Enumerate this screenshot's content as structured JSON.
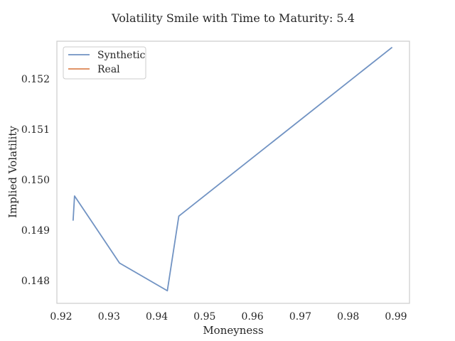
{
  "chart_data": {
    "type": "line",
    "title": "Volatility Smile with Time to Maturity: 5.4",
    "xlabel": "Moneyness",
    "ylabel": "Implied Volatility",
    "xlim": [
      0.92,
      0.99
    ],
    "ylim": [
      0.14755,
      0.15275
    ],
    "x_ticks": [
      0.92,
      0.93,
      0.94,
      0.95,
      0.96,
      0.97,
      0.98,
      0.99
    ],
    "x_tick_labels": [
      "0.92",
      "0.93",
      "0.94",
      "0.95",
      "0.96",
      "0.97",
      "0.98",
      "0.99"
    ],
    "y_ticks": [
      0.148,
      0.149,
      0.15,
      0.151,
      0.152
    ],
    "y_tick_labels": [
      "0.148",
      "0.149",
      "0.150",
      "0.151",
      "0.152"
    ],
    "grid": false,
    "legend_position": "top-left",
    "series": [
      {
        "name": "Synthetic",
        "color": "#7193c3",
        "points": [
          [
            0.9225,
            0.14919
          ],
          [
            0.9228,
            0.14968
          ],
          [
            0.9322,
            0.14835
          ],
          [
            0.9422,
            0.1478
          ],
          [
            0.9446,
            0.14928
          ],
          [
            0.9892,
            0.15263
          ]
        ]
      },
      {
        "name": "Real",
        "color": "#dd8452",
        "points": []
      }
    ]
  }
}
